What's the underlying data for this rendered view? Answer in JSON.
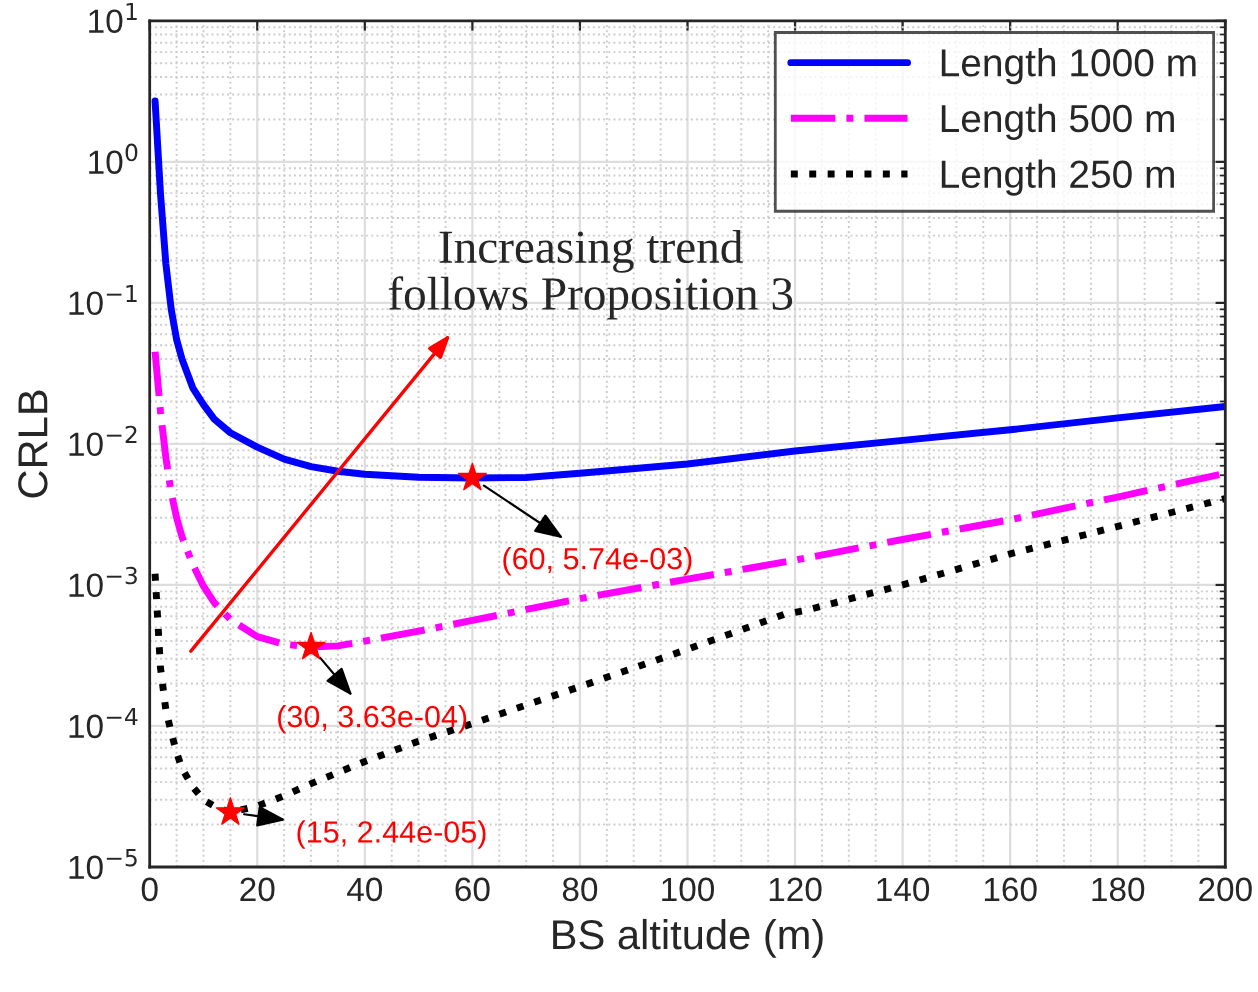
{
  "chart_data": {
    "type": "line",
    "xlabel": "BS altitude (m)",
    "ylabel": "CRLB",
    "log": "y",
    "grid": true,
    "legend": "top right",
    "xlim": [
      0,
      200
    ],
    "xticks": [
      0,
      20,
      40,
      60,
      80,
      100,
      120,
      140,
      160,
      180,
      200
    ],
    "ylim": [
      1e-05,
      10
    ],
    "yticks": [
      {
        "value": 1e-05,
        "label": "10$^{−5}$"
      },
      {
        "value": 0.0001,
        "label": "10$^{−4}$"
      },
      {
        "value": 0.001,
        "label": "10$^{−3}$"
      },
      {
        "value": 0.01,
        "label": "10$^{−2}$"
      },
      {
        "value": 0.1,
        "label": "10$^{−1}$"
      },
      {
        "value": 1,
        "label": "10$^{0}$"
      },
      {
        "value": 10,
        "label": "10$^{1}$"
      }
    ],
    "series": [
      {
        "name": "Length 1000 m",
        "color": "#0000ff",
        "line_style": "solid",
        "x": [
          1,
          2,
          3,
          4,
          5,
          6,
          8,
          10,
          12,
          15,
          20,
          25,
          30,
          35,
          40,
          50,
          60,
          70,
          80,
          100,
          120,
          140,
          160,
          180,
          200
        ],
        "values": [
          2.7,
          0.6,
          0.19,
          0.09,
          0.055,
          0.04,
          0.025,
          0.019,
          0.015,
          0.012,
          0.0095,
          0.0078,
          0.0069,
          0.0064,
          0.0061,
          0.0058,
          0.00574,
          0.00578,
          0.0062,
          0.0072,
          0.0089,
          0.0106,
          0.0126,
          0.0153,
          0.0184
        ]
      },
      {
        "name": "Length 500 m",
        "color": "#ff00ff",
        "line_style": "dashdot",
        "x": [
          1,
          2,
          3,
          4,
          5,
          6,
          8,
          10,
          12,
          15,
          20,
          25,
          30,
          35,
          40,
          50,
          60,
          80,
          100,
          120,
          140,
          160,
          180,
          200
        ],
        "values": [
          0.045,
          0.017,
          0.008,
          0.0045,
          0.003,
          0.0022,
          0.0014,
          0.00098,
          0.00075,
          0.00057,
          0.00043,
          0.00038,
          0.000363,
          0.00037,
          0.0004,
          0.00047,
          0.00056,
          0.0008,
          0.0011,
          0.0015,
          0.0021,
          0.0029,
          0.0042,
          0.0062
        ]
      },
      {
        "name": "Length 250 m",
        "color": "#000000",
        "line_style": "dotted",
        "x": [
          1,
          2,
          3,
          4,
          5,
          6,
          8,
          10,
          12,
          15,
          20,
          25,
          30,
          40,
          50,
          60,
          80,
          100,
          118,
          122,
          140,
          160,
          180,
          200
        ],
        "values": [
          0.0012,
          0.00026,
          0.00013,
          9e-05,
          6.5e-05,
          5e-05,
          3.7e-05,
          3e-05,
          2.7e-05,
          2.44e-05,
          2.7e-05,
          3.2e-05,
          3.9e-05,
          5.6e-05,
          7.8e-05,
          0.000104,
          0.00019,
          0.00035,
          0.00062,
          0.00066,
          0.001,
          0.00166,
          0.0026,
          0.0041
        ]
      },
      {
        "type": "scatter",
        "marker": "star",
        "color": "#ff0000",
        "x": [
          60,
          30,
          15
        ],
        "values": [
          0.00574,
          0.000363,
          2.44e-05
        ]
      }
    ],
    "annotations": [
      {
        "text": "(60, 5.74e-03)",
        "x": 60,
        "y": 0.00574
      },
      {
        "text": "(30, 3.63e-04)",
        "x": 30,
        "y": 0.000363
      },
      {
        "text": "(15, 2.44e-05)",
        "x": 15,
        "y": 2.44e-05
      },
      "Increasing trend\nfollows Proposition 3"
    ]
  }
}
